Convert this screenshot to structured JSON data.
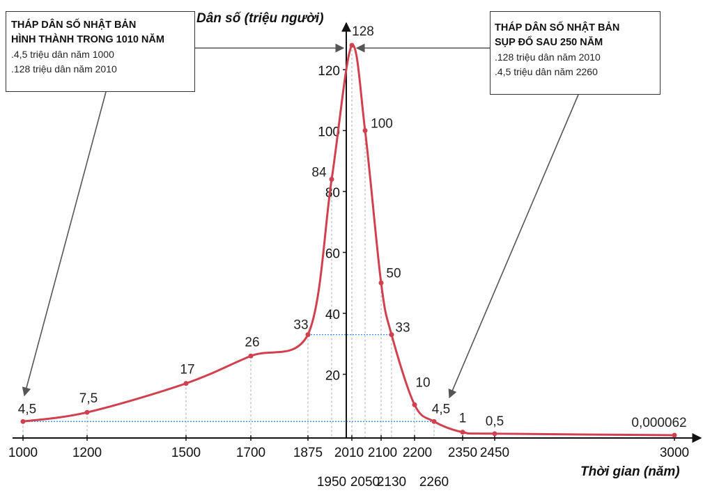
{
  "boxes": {
    "left": {
      "title1": "THÁP DÂN SỐ NHẬT BẢN",
      "title2": "HÌNH THÀNH TRONG 1010 NĂM",
      "line1": ".4,5 triệu dân năm 1000",
      "line2": ".128 triệu dân năm 2010"
    },
    "right": {
      "title1": "THÁP DÂN SỐ NHẬT BẢN",
      "title2": "SỤP ĐỔ SAU 250 NĂM",
      "line1": ".128 triệu dân năm 2010",
      "line2": ".4,5 triệu dân năm 2260"
    }
  },
  "colors": {
    "curve": "#d0404e",
    "guide_blue": "#3a8fe0",
    "guide_gray": "#aaaaaa",
    "axis": "#111111"
  },
  "chart_data": {
    "type": "line",
    "title": "",
    "xlabel": "Thời gian (năm)",
    "ylabel": "Dân số (triệu người)",
    "ylim": [
      0,
      130
    ],
    "yticks": [
      20,
      40,
      60,
      80,
      100,
      120
    ],
    "x_tick_labels_row1": [
      "1000",
      "1200",
      "1500",
      "1700",
      "1875",
      "2010",
      "2100",
      "2200",
      "2350",
      "2450",
      "3000"
    ],
    "x_tick_labels_row2": [
      "1950",
      "2050",
      "2130",
      "2260"
    ],
    "series": [
      {
        "points": [
          {
            "x": 1000,
            "y": 4.5,
            "label": "4,5"
          },
          {
            "x": 1200,
            "y": 7.5,
            "label": "7,5"
          },
          {
            "x": 1500,
            "y": 17,
            "label": "17"
          },
          {
            "x": 1700,
            "y": 26,
            "label": "26"
          },
          {
            "x": 1875,
            "y": 33,
            "label": "33"
          },
          {
            "x": 1950,
            "y": 84,
            "label": "84"
          },
          {
            "x": 2010,
            "y": 128,
            "label": "128"
          },
          {
            "x": 2050,
            "y": 100,
            "label": "100"
          },
          {
            "x": 2100,
            "y": 50,
            "label": "50"
          },
          {
            "x": 2130,
            "y": 33,
            "label": "33"
          },
          {
            "x": 2200,
            "y": 10,
            "label": "10"
          },
          {
            "x": 2260,
            "y": 4.5,
            "label": "4,5"
          },
          {
            "x": 2350,
            "y": 1,
            "label": "1"
          },
          {
            "x": 2450,
            "y": 0.5,
            "label": "0,5"
          },
          {
            "x": 3000,
            "y": 6.2e-05,
            "label": "0,000062"
          }
        ]
      }
    ]
  }
}
